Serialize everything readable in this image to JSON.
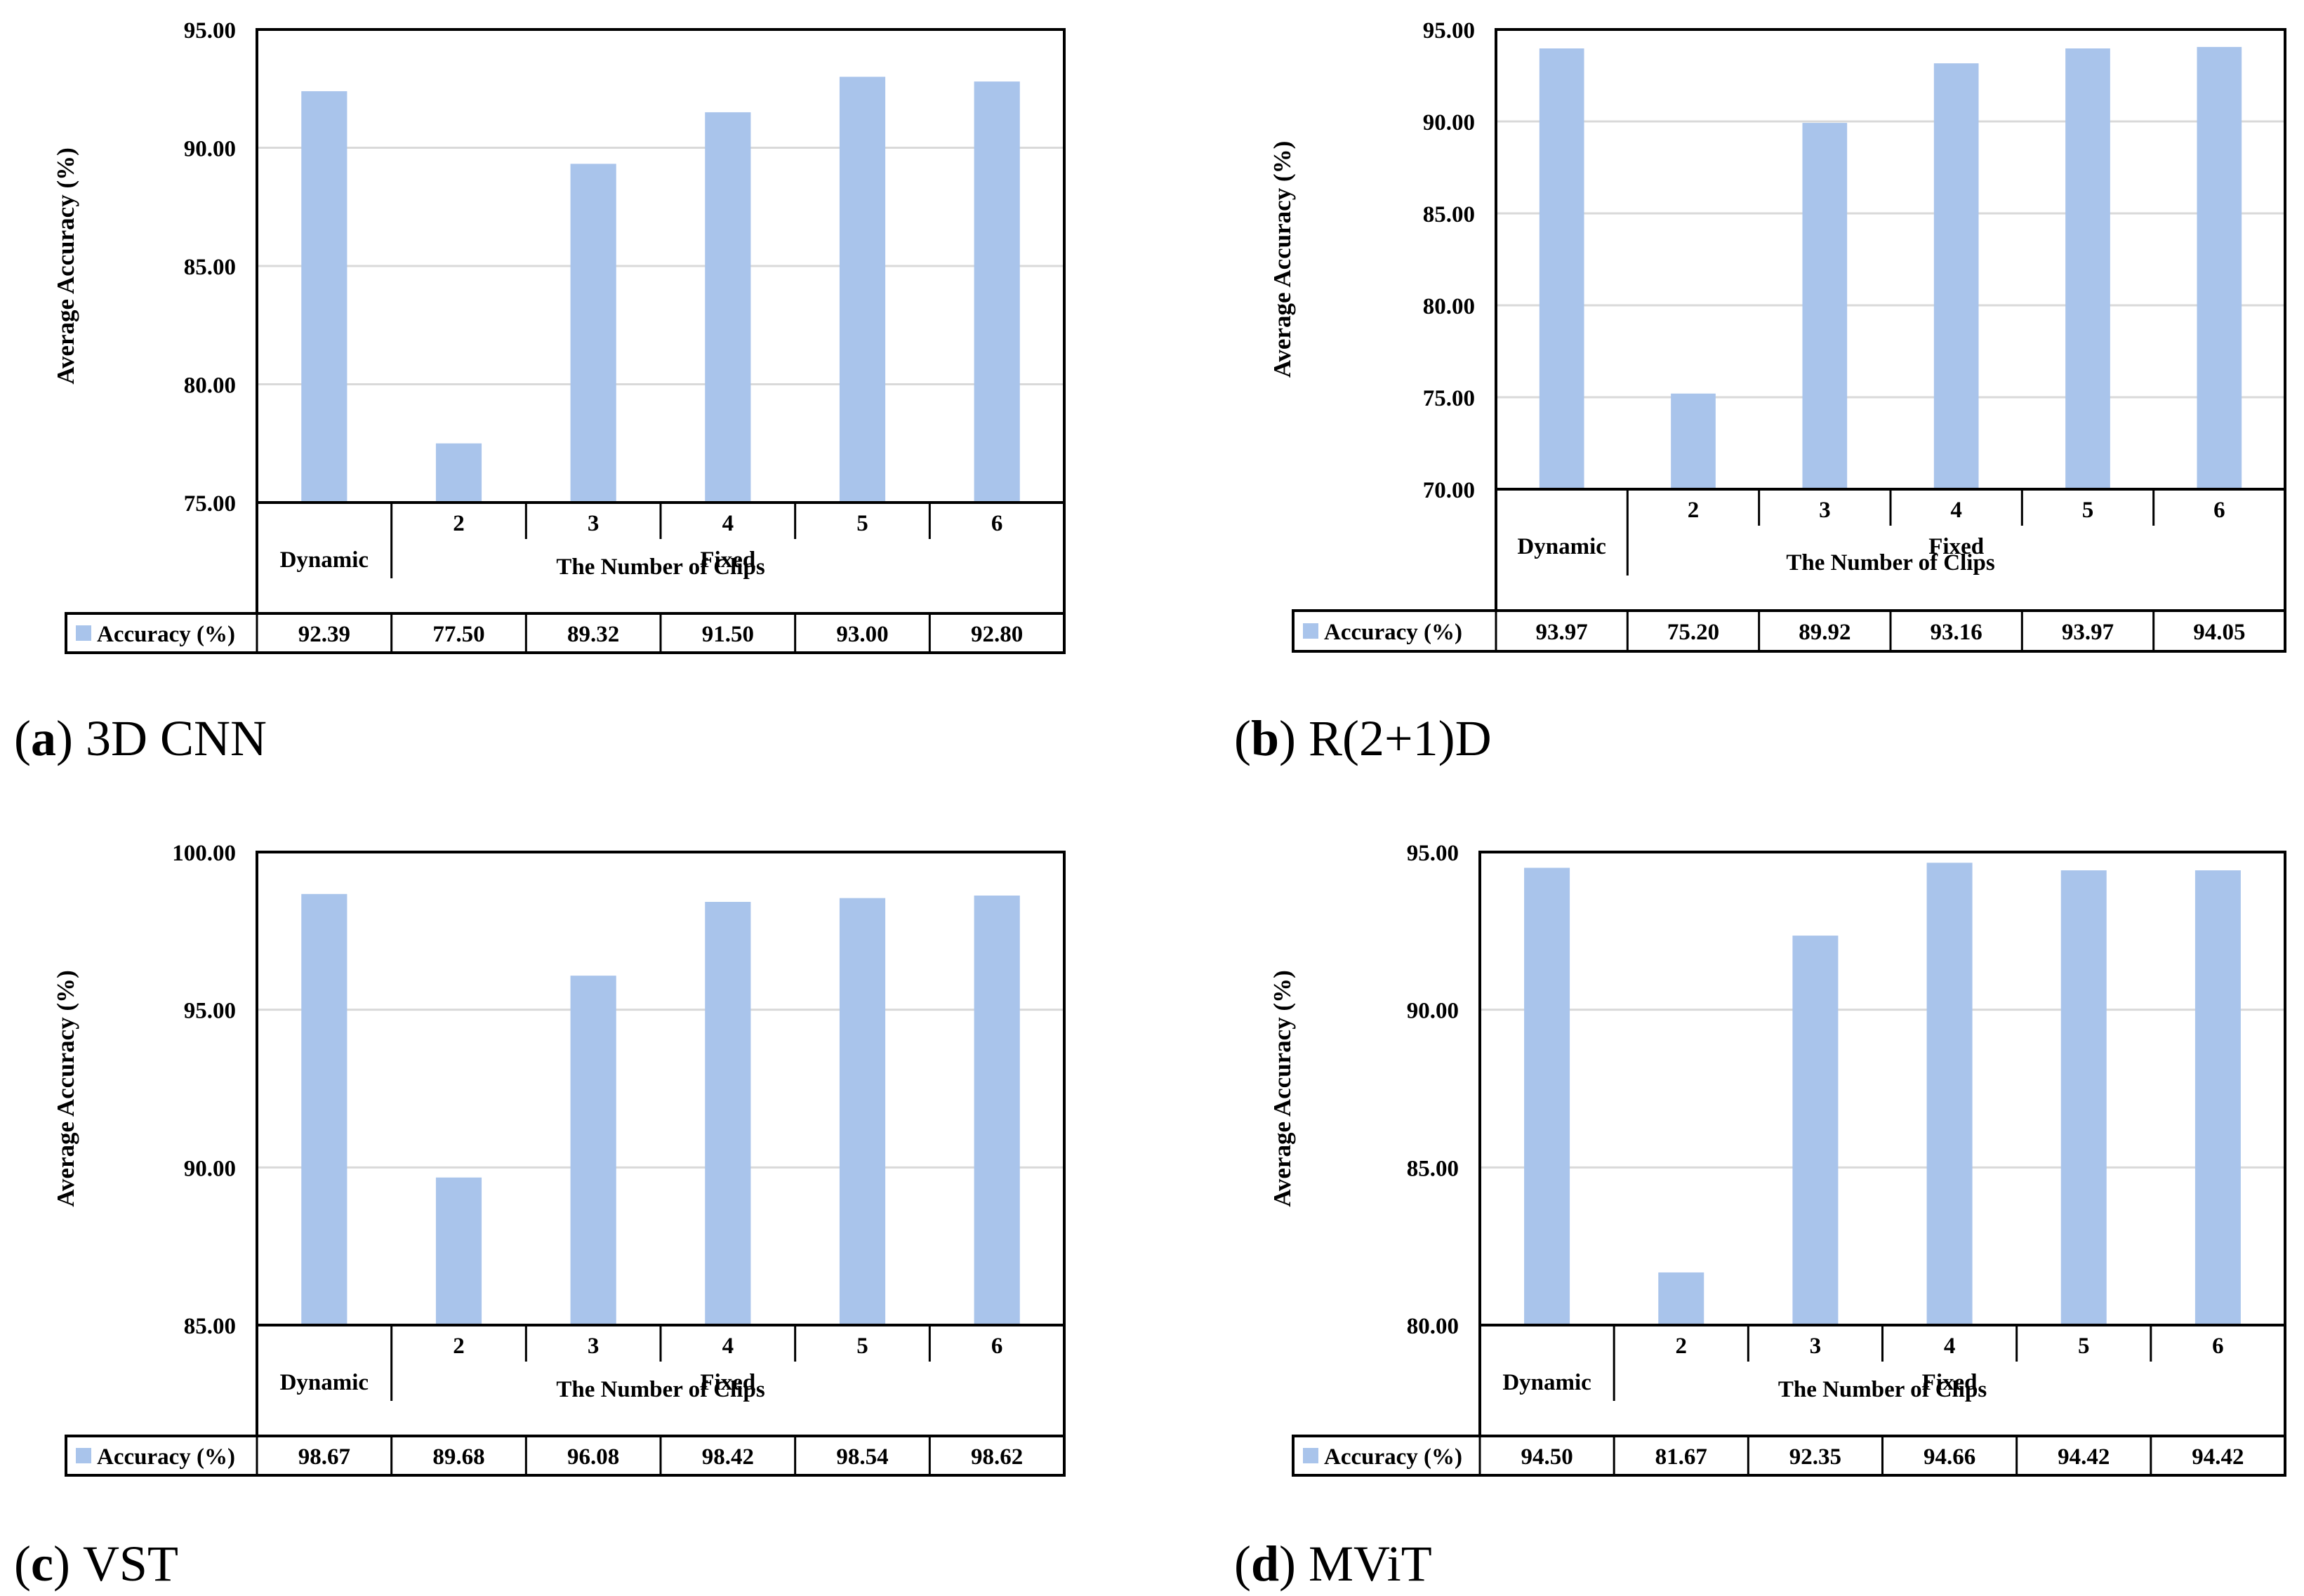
{
  "chart_data": [
    {
      "type": "bar",
      "panel_letter": "a",
      "panel_open": "(",
      "panel_close": ")",
      "caption": "3D CNN",
      "ylabel": "Average Accuracy (%)",
      "ylim": [
        75,
        95
      ],
      "yticks": [
        "75.00",
        "80.00",
        "85.00",
        "90.00",
        "95.00"
      ],
      "categories": [
        "Dynamic",
        "2",
        "3",
        "4",
        "5",
        "6"
      ],
      "group_label": "Fixed",
      "xlabel": "The Number of Clips",
      "series": [
        {
          "name": "Accuracy (%)",
          "values": [
            92.39,
            77.5,
            89.32,
            91.5,
            93.0,
            92.8
          ],
          "labels": [
            "92.39",
            "77.50",
            "89.32",
            "91.50",
            "93.00",
            "92.80"
          ]
        }
      ],
      "bar_color": "#A9C4EB"
    },
    {
      "type": "bar",
      "panel_letter": "b",
      "panel_open": "(",
      "panel_close": ")",
      "caption": "R(2+1)D",
      "ylabel": "Average Accuracy (%)",
      "ylim": [
        70,
        95
      ],
      "yticks": [
        "70.00",
        "75.00",
        "80.00",
        "85.00",
        "90.00",
        "95.00"
      ],
      "categories": [
        "Dynamic",
        "2",
        "3",
        "4",
        "5",
        "6"
      ],
      "group_label": "Fixed",
      "xlabel": "The Number of Clips",
      "series": [
        {
          "name": "Accuracy (%)",
          "values": [
            93.97,
            75.2,
            89.92,
            93.16,
            93.97,
            94.05
          ],
          "labels": [
            "93.97",
            "75.20",
            "89.92",
            "93.16",
            "93.97",
            "94.05"
          ]
        }
      ],
      "bar_color": "#A9C4EB"
    },
    {
      "type": "bar",
      "panel_letter": "c",
      "panel_open": "(",
      "panel_close": ")",
      "caption": "VST",
      "ylabel": "Average Accuracy (%)",
      "ylim": [
        85,
        100
      ],
      "yticks": [
        "85.00",
        "90.00",
        "95.00",
        "100.00"
      ],
      "categories": [
        "Dynamic",
        "2",
        "3",
        "4",
        "5",
        "6"
      ],
      "group_label": "Fixed",
      "xlabel": "The Number of Clips",
      "series": [
        {
          "name": "Accuracy (%)",
          "values": [
            98.67,
            89.68,
            96.08,
            98.42,
            98.54,
            98.62
          ],
          "labels": [
            "98.67",
            "89.68",
            "96.08",
            "98.42",
            "98.54",
            "98.62"
          ]
        }
      ],
      "bar_color": "#A9C4EB"
    },
    {
      "type": "bar",
      "panel_letter": "d",
      "panel_open": "(",
      "panel_close": ")",
      "caption": "MViT",
      "ylabel": "Average Accuracy (%)",
      "ylim": [
        80,
        95
      ],
      "yticks": [
        "80.00",
        "85.00",
        "90.00",
        "95.00"
      ],
      "categories": [
        "Dynamic",
        "2",
        "3",
        "4",
        "5",
        "6"
      ],
      "group_label": "Fixed",
      "xlabel": "The Number of Clips",
      "series": [
        {
          "name": "Accuracy (%)",
          "values": [
            94.5,
            81.67,
            92.35,
            94.66,
            94.42,
            94.42
          ],
          "labels": [
            "94.50",
            "81.67",
            "92.35",
            "94.66",
            "94.42",
            "94.42"
          ]
        }
      ],
      "bar_color": "#A9C4EB"
    }
  ]
}
